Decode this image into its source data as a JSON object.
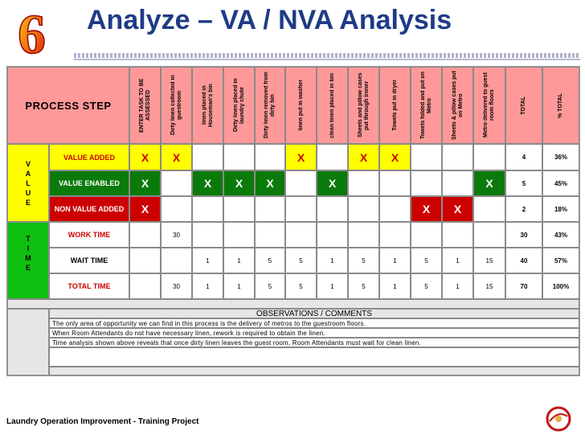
{
  "title": "Analyze – VA / NVA Analysis",
  "logo_digit": "6",
  "header": {
    "process_step": "PROCESS STEP",
    "columns": [
      "ENTER TASK TO BE ASSESSED",
      "Dirty linen collected in guestroom",
      "linen placed in Houseman's bin",
      "Dirty linen placed in laundry chute",
      "Dirty linen removed from dirty bin",
      "linen put in washer",
      "clean linen placed in bin",
      "Sheets and pillow cases put through ironer",
      "Towels put in dryer",
      "Towels folded and put on Metro",
      "Sheets & pillow cases put on Metro",
      "Metro delivered to guest room floors"
    ],
    "total": "TOTAL",
    "pct_total": "% TOTAL"
  },
  "value_group_label": [
    "V",
    "A",
    "L",
    "U",
    "E"
  ],
  "time_group_label": [
    "T",
    "I",
    "M",
    "E"
  ],
  "value_rows": [
    {
      "label": "VALUE ADDED",
      "marks": [
        "X",
        "X",
        "",
        "",
        "",
        "X",
        "",
        "X",
        "X",
        "",
        "",
        ""
      ],
      "total": "4",
      "pct": "36%"
    },
    {
      "label": "VALUE ENABLED",
      "marks": [
        "X",
        "",
        "X",
        "X",
        "X",
        "",
        "X",
        "",
        "",
        "",
        "",
        "X"
      ],
      "total": "5",
      "pct": "45%"
    },
    {
      "label": "NON VALUE ADDED",
      "marks": [
        "X",
        "",
        "",
        "",
        "",
        "",
        "",
        "",
        "",
        "X",
        "X",
        ""
      ],
      "total": "2",
      "pct": "18%"
    }
  ],
  "time_rows": [
    {
      "label": "WORK TIME",
      "values": [
        "",
        "30",
        "",
        "",
        "",
        "",
        "",
        "",
        "",
        "",
        "",
        ""
      ],
      "total": "30",
      "pct": "43%"
    },
    {
      "label": "WAIT TIME",
      "values": [
        "",
        "",
        "1",
        "1",
        "5",
        "5",
        "1",
        "5",
        "1",
        "5",
        "1",
        "15"
      ],
      "total": "40",
      "pct": "57%"
    },
    {
      "label": "TOTAL TIME",
      "values": [
        "",
        "30",
        "1",
        "1",
        "5",
        "5",
        "1",
        "5",
        "1",
        "5",
        "1",
        "15"
      ],
      "total": "70",
      "pct": "100%"
    }
  ],
  "observations": {
    "heading": "OBSERVATIONS / COMMENTS",
    "lines": [
      "The  only area of opportunity we can find in this process is the delivery of metros to the guestroom floors.",
      "When Room Attendants do not have necessary linen, rework is required to obtain the linen.",
      "Time analysis shown above reveals that once dirty linen leaves the guest room, Room Attendants must wait for clean linen.",
      ""
    ]
  },
  "footer": "Laundry Operation Improvement - Training Project",
  "colors": {
    "title": "#1f3b86",
    "header_pink": "#ff9999",
    "value_added": "#ffff00",
    "value_enabled": "#0a7a0a",
    "non_value_added": "#cc0000",
    "time_group": "#10c010"
  }
}
